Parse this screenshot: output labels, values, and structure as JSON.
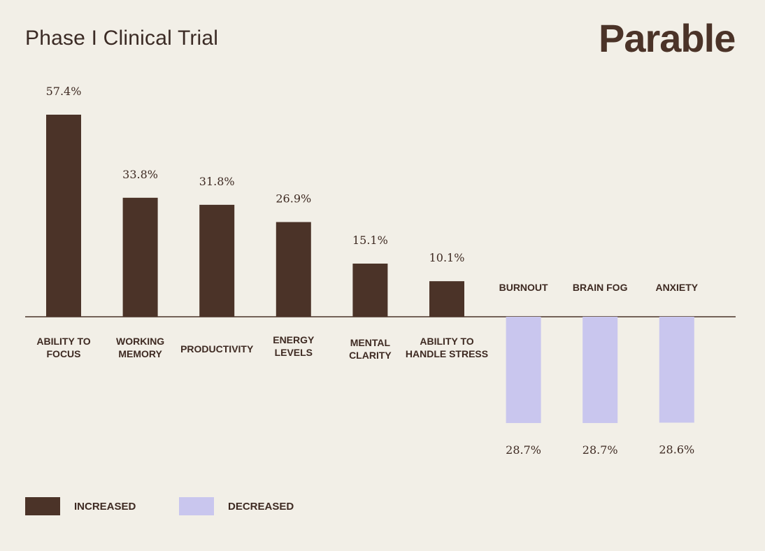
{
  "header": {
    "title": "Phase I Clinical Trial",
    "brand": "Parable"
  },
  "colors": {
    "increased": "#4b3328",
    "decreased": "#c9c6ee",
    "baseline": "#4b3328",
    "text": "#3e2a22"
  },
  "legend": [
    {
      "label": "INCREASED",
      "color": "#4b3328"
    },
    {
      "label": "DECREASED",
      "color": "#c9c6ee"
    }
  ],
  "chart_data": {
    "type": "bar",
    "title": "Phase I Clinical Trial",
    "xlabel": "",
    "ylabel": "",
    "ylim": [
      -28.7,
      57.4
    ],
    "grid": false,
    "legend_position": "bottom-left",
    "series": [
      {
        "name": "INCREASED",
        "values": [
          57.4,
          33.8,
          31.8,
          26.9,
          15.1,
          10.1,
          null,
          null,
          null
        ]
      },
      {
        "name": "DECREASED",
        "values": [
          null,
          null,
          null,
          null,
          null,
          null,
          28.7,
          28.7,
          28.6
        ]
      }
    ],
    "categories": [
      [
        "ABILITY TO",
        "FOCUS"
      ],
      [
        "WORKING",
        "MEMORY"
      ],
      [
        "PRODUCTIVITY"
      ],
      [
        "ENERGY",
        "LEVELS"
      ],
      [
        "MENTAL",
        "CLARITY"
      ],
      [
        "ABILITY TO",
        "HANDLE STRESS"
      ],
      [
        "BURNOUT"
      ],
      [
        "BRAIN FOG"
      ],
      [
        "ANXIETY"
      ]
    ],
    "data_labels": [
      "57.4%",
      "33.8%",
      "31.8%",
      "26.9%",
      "15.1%",
      "10.1%",
      "28.7%",
      "28.7%",
      "28.6%"
    ]
  }
}
